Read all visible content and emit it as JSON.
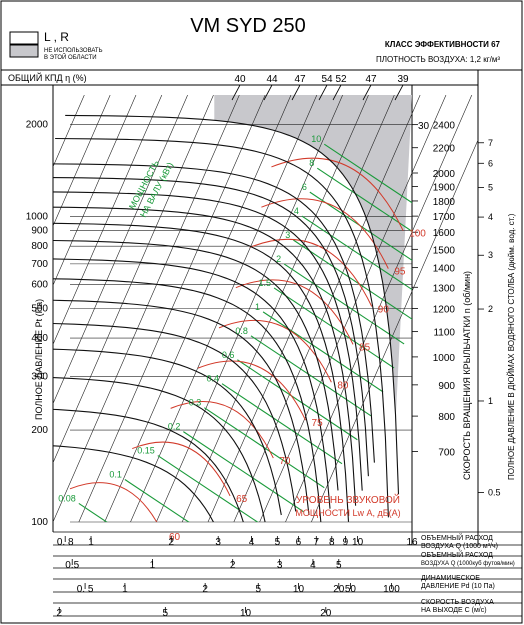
{
  "chart_data": {
    "type": "line",
    "title": "VM SYD 250",
    "legend": {
      "box1_label": "L , R",
      "box2_label_1": "НЕ ИСПОЛЬЗОВАТЬ",
      "box2_label_2": "В ЭТОЙ ОБЛАСТИ",
      "hatch_color": "#c8c8cc"
    },
    "efficiency_class": "КЛАСС ЭФФЕКТИВНОСТИ 67",
    "air_density": "ПЛОТНОСТЬ ВОЗДУХА: 1,2 кг/м³",
    "efficiency_label": "ОБЩИЙ КПД η (%)",
    "efficiency_values": [
      "40",
      "44",
      "47",
      "54",
      "52",
      "47",
      "39"
    ],
    "ylabel": "ПОЛНОЕ ДАВЛЕНИЕ Pt (Па)",
    "y_scale": "log",
    "ylim": [
      100,
      2500
    ],
    "y_ticks": [
      {
        "v": 2000,
        "label": "2000"
      },
      {
        "v": 1000,
        "label": "1000"
      },
      {
        "v": 900,
        "label": "900"
      },
      {
        "v": 800,
        "label": "800"
      },
      {
        "v": 700,
        "label": "700"
      },
      {
        "v": 600,
        "label": "600"
      },
      {
        "v": 500,
        "label": "500"
      },
      {
        "v": 400,
        "label": "400"
      },
      {
        "v": 300,
        "label": "300"
      },
      {
        "v": 200,
        "label": "200"
      },
      {
        "v": 100,
        "label": "100"
      }
    ],
    "x_scale": "log",
    "xlim": [
      0.72,
      16
    ],
    "flow_ticks": [
      {
        "v": 0.8,
        "label": "0. 8"
      },
      {
        "v": 1,
        "label": "1"
      },
      {
        "v": 2,
        "label": "2"
      },
      {
        "v": 3,
        "label": "3"
      },
      {
        "v": 4,
        "label": "4"
      },
      {
        "v": 5,
        "label": "5"
      },
      {
        "v": 6,
        "label": "6"
      },
      {
        "v": 7,
        "label": "7"
      },
      {
        "v": 8,
        "label": "8"
      },
      {
        "v": 9,
        "label": "9"
      },
      {
        "v": 10,
        "label": "10"
      },
      {
        "v": 16,
        "label": "16"
      }
    ],
    "flow_label": "ОБЪЕМНЫЙ РАСХОД ВОЗДУХА Q (1000 м³/ч)",
    "cfm_ticks": [
      {
        "v": 0.85,
        "label": "0.5"
      },
      {
        "v": 1.7,
        "label": "1"
      },
      {
        "v": 3.4,
        "label": "2"
      },
      {
        "v": 5.1,
        "label": "3"
      },
      {
        "v": 6.8,
        "label": "4"
      },
      {
        "v": 8.5,
        "label": "5"
      }
    ],
    "cfm_label": "ОБЪЕМНЫЙ РАСХОД ВОЗДУХА Q (1000 куб футов/мин)",
    "pd_ticks": [
      {
        "v": 0.95,
        "label": "0. 5"
      },
      {
        "v": 1.34,
        "label": "1"
      },
      {
        "v": 2.68,
        "label": "2"
      },
      {
        "v": 4.24,
        "label": "5"
      },
      {
        "v": 6.0,
        "label": "10"
      },
      {
        "v": 8.5,
        "label": "20"
      },
      {
        "v": 9.4,
        "label": "50"
      },
      {
        "v": 13.4,
        "label": "100"
      }
    ],
    "pd_label": "ДИНАМИЧЕСКОЕ ДАВЛЕНИЕ Pd (10 Па)",
    "velocity_ticks": [
      {
        "v": 0.76,
        "label": "2"
      },
      {
        "v": 1.9,
        "label": "5"
      },
      {
        "v": 3.8,
        "label": "10"
      },
      {
        "v": 7.6,
        "label": "20"
      }
    ],
    "velocity_label": "СКОРОСТЬ ВОЗДУХА НА ВЫХОДЕ C (м/с)",
    "rpm_label": "СКОРОСТЬ ВРАЩЕНИЯ КРЫЛЬЧАТКИ n (об/мин)",
    "rpm_ticks": [
      "2400",
      "2200",
      "2000",
      "1900",
      "1800",
      "1700",
      "1600",
      "1500",
      "1400",
      "1300",
      "1200",
      "1100",
      "1000",
      "900",
      "800",
      "700"
    ],
    "inch_label": "ПОЛНОЕ ДАВЛЕНИЕ В ДЮЙМАХ ВОДЯНОГО СТОЛБА (дюйм. вод. ст.)",
    "inch_ticks": [
      {
        "label": "7",
        "pt": 1744
      },
      {
        "label": "6",
        "pt": 1494
      },
      {
        "label": "5",
        "pt": 1245
      },
      {
        "label": "4",
        "pt": 996
      },
      {
        "label": "3",
        "pt": 747
      },
      {
        "label": "2",
        "pt": 498
      },
      {
        "label": "1",
        "pt": 249
      },
      {
        "label": "0.5",
        "pt": 125
      }
    ],
    "extra_label_30": "30",
    "power_label_1": "МОЩНОСТЬ",
    "power_label_2": "НА ВАЛУ (кВт)",
    "power_values": [
      "0.08",
      "0.1",
      "0.15",
      "0.2",
      "0.3",
      "0.4",
      "0.6",
      "0.8",
      "1",
      "1.5",
      "2",
      "3",
      "4",
      "6",
      "8",
      "10"
    ],
    "noise_label_1": "УРОВЕНЬ ЗВУКОВОЙ",
    "noise_label_2": "МОЩНОСТИ Lw А, дБ(А)",
    "noise_values": [
      "60",
      "65",
      "70",
      "75",
      "80",
      "85",
      "90",
      "95",
      "100"
    ],
    "colors": {
      "curve": "#111111",
      "power": "#1a9a3a",
      "noise": "#d23a2a",
      "grid": "#222222",
      "hatch": "#c8c8cc"
    }
  }
}
